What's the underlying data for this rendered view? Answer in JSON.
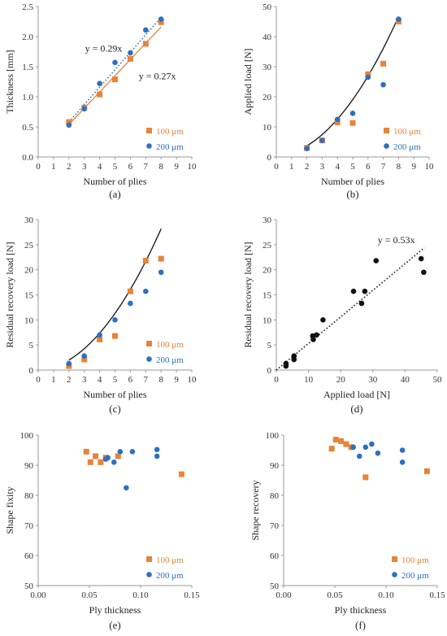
{
  "colors": {
    "orange": "#e8833a",
    "blue": "#2e6fc1",
    "black": "#111111",
    "axis": "#9a9a9a"
  },
  "chart_data": [
    {
      "id": "a",
      "type": "scatter",
      "caption": "(a)",
      "xlabel": "Number of plies",
      "ylabel": "Thickness [mm]",
      "xlim": [
        0,
        10
      ],
      "ylim": [
        0,
        2.5
      ],
      "xticks": [
        "0",
        "1",
        "2",
        "3",
        "4",
        "5",
        "6",
        "7",
        "8",
        "9",
        "10"
      ],
      "yticks": [
        "0.0",
        "0.5",
        "1.0",
        "1.5",
        "2.0",
        "2.5"
      ],
      "series": [
        {
          "name": "100 μm",
          "marker": "square",
          "color": "#e8833a",
          "points": [
            [
              2,
              0.58
            ],
            [
              3,
              0.82
            ],
            [
              4,
              1.04
            ],
            [
              5,
              1.29
            ],
            [
              6,
              1.63
            ],
            [
              7,
              1.88
            ],
            [
              8,
              2.24
            ]
          ]
        },
        {
          "name": "200 μm",
          "marker": "circle",
          "color": "#2e6fc1",
          "points": [
            [
              2,
              0.53
            ],
            [
              3,
              0.8
            ],
            [
              4,
              1.22
            ],
            [
              5,
              1.57
            ],
            [
              6,
              1.73
            ],
            [
              7,
              2.11
            ],
            [
              8,
              2.29
            ]
          ]
        }
      ],
      "fits": [
        {
          "kind": "linear",
          "slope": 0.29,
          "x": [
            2,
            8
          ],
          "style": "dotted",
          "color": "#2e6fc1",
          "label": "y = 0.29x",
          "label_at": [
            3.05,
            1.75
          ]
        },
        {
          "kind": "linear",
          "slope": 0.27,
          "x": [
            2,
            8
          ],
          "style": "solid",
          "color": "#e8833a",
          "label": "y = 0.27x",
          "label_at": [
            6.55,
            1.29
          ]
        }
      ],
      "legend_position": "bottom-right"
    },
    {
      "id": "b",
      "type": "scatter",
      "caption": "(b)",
      "xlabel": "Number of plies",
      "ylabel": "Applied load [N]",
      "xlim": [
        0,
        10
      ],
      "ylim": [
        0,
        50
      ],
      "xticks": [
        "0",
        "1",
        "2",
        "3",
        "4",
        "5",
        "6",
        "7",
        "8",
        "9",
        "10"
      ],
      "yticks": [
        "0",
        "10",
        "20",
        "30",
        "40",
        "50"
      ],
      "series": [
        {
          "name": "100 μm",
          "marker": "square",
          "color": "#e8833a",
          "points": [
            [
              2,
              3
            ],
            [
              3,
              5.5
            ],
            [
              4,
              11.5
            ],
            [
              5,
              11.3
            ],
            [
              6,
              27.5
            ],
            [
              7,
              31
            ],
            [
              8,
              45
            ]
          ]
        },
        {
          "name": "200 μm",
          "marker": "circle",
          "color": "#2e6fc1",
          "points": [
            [
              2,
              2.8
            ],
            [
              3,
              5.5
            ],
            [
              4,
              12.5
            ],
            [
              5,
              14.5
            ],
            [
              6,
              26.5
            ],
            [
              7,
              24
            ],
            [
              8,
              45.8
            ]
          ]
        }
      ],
      "fits": [
        {
          "kind": "quadratic",
          "coef": [
            0.68,
            0.36,
            0.25
          ],
          "x": [
            2,
            8
          ],
          "style": "solid",
          "color": "#111111"
        }
      ],
      "legend_position": "bottom-right"
    },
    {
      "id": "c",
      "type": "scatter",
      "caption": "(c)",
      "xlabel": "Number of plies",
      "ylabel": "Residual recovery load [N]",
      "xlim": [
        0,
        10
      ],
      "ylim": [
        0,
        30
      ],
      "xticks": [
        "0",
        "1",
        "2",
        "3",
        "4",
        "5",
        "6",
        "7",
        "8",
        "9",
        "10"
      ],
      "yticks": [
        "0",
        "5",
        "10",
        "15",
        "20",
        "25",
        "30"
      ],
      "series": [
        {
          "name": "100 μm",
          "marker": "square",
          "color": "#e8833a",
          "points": [
            [
              2,
              0.8
            ],
            [
              3,
              2.1
            ],
            [
              4,
              6.1
            ],
            [
              5,
              6.8
            ],
            [
              6,
              15.7
            ],
            [
              7,
              21.8
            ],
            [
              8,
              22.2
            ]
          ]
        },
        {
          "name": "200 μm",
          "marker": "circle",
          "color": "#2e6fc1",
          "points": [
            [
              2,
              1.3
            ],
            [
              3,
              2.8
            ],
            [
              4,
              7
            ],
            [
              5,
              10
            ],
            [
              6,
              13.3
            ],
            [
              7,
              15.7
            ],
            [
              8,
              19.5
            ]
          ]
        }
      ],
      "fits": [
        {
          "kind": "quadratic",
          "coef": [
            0.42,
            0.16,
            0.0
          ],
          "x": [
            2,
            8
          ],
          "style": "solid",
          "color": "#111111"
        }
      ],
      "legend_position": "bottom-right"
    },
    {
      "id": "d",
      "type": "scatter",
      "caption": "(d)",
      "xlabel": "Applied load [N]",
      "ylabel": "Residual recovery load [N]",
      "xlim": [
        0,
        50
      ],
      "ylim": [
        0,
        30
      ],
      "xticks": [
        "0",
        "10",
        "20",
        "30",
        "40",
        "50"
      ],
      "yticks": [
        "0",
        "5",
        "10",
        "15",
        "20",
        "25",
        "30"
      ],
      "series": [
        {
          "name": "",
          "marker": "circle",
          "color": "#111111",
          "points": [
            [
              3,
              0.8
            ],
            [
              3,
              1.3
            ],
            [
              5.5,
              2.1
            ],
            [
              5.5,
              2.8
            ],
            [
              11.3,
              6.8
            ],
            [
              11.5,
              6.1
            ],
            [
              12.5,
              7
            ],
            [
              14.5,
              10
            ],
            [
              24,
              15.7
            ],
            [
              26.5,
              13.3
            ],
            [
              27.5,
              15.7
            ],
            [
              31,
              21.8
            ],
            [
              45,
              22.2
            ],
            [
              45.8,
              19.5
            ]
          ]
        }
      ],
      "fits": [
        {
          "kind": "linear",
          "slope": 0.53,
          "x": [
            0,
            46
          ],
          "style": "dotted",
          "color": "#111111",
          "label": "y = 0.53x",
          "label_at": [
            31.5,
            25.3
          ]
        }
      ],
      "legend_position": "none"
    },
    {
      "id": "e",
      "type": "scatter",
      "caption": "(e)",
      "xlabel": "Ply thickness",
      "ylabel": "Shape fixity",
      "xlim": [
        0,
        0.15
      ],
      "ylim": [
        50,
        100
      ],
      "xticks": [
        "0.00",
        "0.05",
        "0.10",
        "0.15"
      ],
      "yticks": [
        "50",
        "60",
        "70",
        "80",
        "90",
        "100"
      ],
      "series": [
        {
          "name": "100 μm",
          "marker": "square",
          "color": "#e8833a",
          "points": [
            [
              0.047,
              94.5
            ],
            [
              0.051,
              91
            ],
            [
              0.056,
              93
            ],
            [
              0.061,
              91
            ],
            [
              0.066,
              92.5
            ],
            [
              0.078,
              93
            ],
            [
              0.14,
              87
            ]
          ]
        },
        {
          "name": "200 μm",
          "marker": "circle",
          "color": "#2e6fc1",
          "points": [
            [
              0.066,
              92
            ],
            [
              0.068,
              92.5
            ],
            [
              0.074,
              91
            ],
            [
              0.08,
              94.5
            ],
            [
              0.086,
              82.5
            ],
            [
              0.092,
              94.5
            ],
            [
              0.116,
              95.2
            ],
            [
              0.116,
              93
            ]
          ]
        }
      ],
      "fits": [],
      "legend_position": "bottom-right"
    },
    {
      "id": "f",
      "type": "scatter",
      "caption": "(f)",
      "xlabel": "Ply thickness",
      "ylabel": "Shape recovery",
      "xlim": [
        0,
        0.15
      ],
      "ylim": [
        50,
        100
      ],
      "xticks": [
        "0.00",
        "0.05",
        "0.10",
        "0.15"
      ],
      "yticks": [
        "50",
        "60",
        "70",
        "80",
        "90",
        "100"
      ],
      "series": [
        {
          "name": "100 μm",
          "marker": "square",
          "color": "#e8833a",
          "points": [
            [
              0.047,
              95.5
            ],
            [
              0.051,
              98.5
            ],
            [
              0.056,
              98
            ],
            [
              0.061,
              97
            ],
            [
              0.066,
              96
            ],
            [
              0.08,
              86
            ],
            [
              0.14,
              88
            ]
          ]
        },
        {
          "name": "200 μm",
          "marker": "circle",
          "color": "#2e6fc1",
          "points": [
            [
              0.068,
              96
            ],
            [
              0.074,
              93
            ],
            [
              0.08,
              96
            ],
            [
              0.086,
              97
            ],
            [
              0.092,
              94
            ],
            [
              0.116,
              95
            ],
            [
              0.116,
              91
            ]
          ]
        }
      ],
      "fits": [],
      "legend_position": "bottom-right"
    }
  ]
}
